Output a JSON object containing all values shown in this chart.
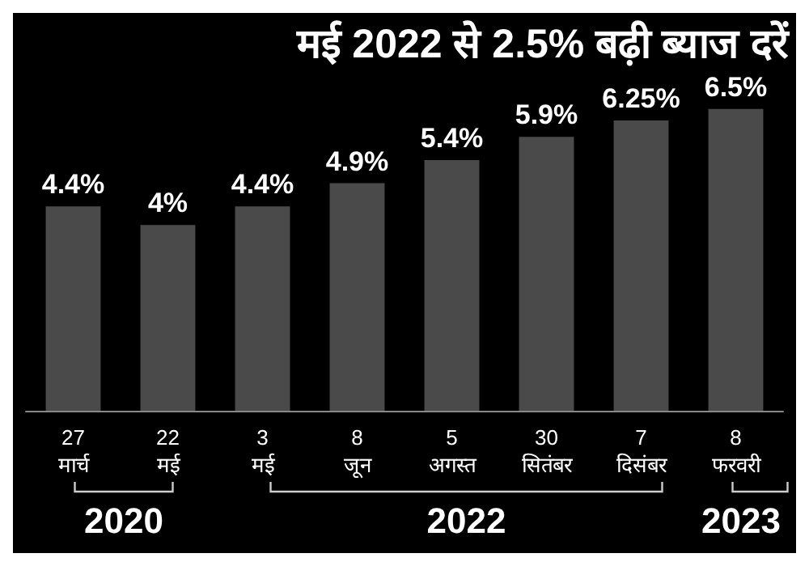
{
  "chart_data": {
    "type": "bar",
    "title": "मई 2022 से 2.5% बढ़ी ब्याज दरें",
    "categories": [
      "27 मार्च",
      "22 मई",
      "3 मई",
      "8 जून",
      "5 अगस्त",
      "30 सितंबर",
      "7 दिसंबर",
      "8 फरवरी"
    ],
    "values": [
      4.4,
      4,
      4.4,
      4.9,
      5.4,
      5.9,
      6.25,
      6.5
    ],
    "value_labels": [
      "4.4%",
      "4%",
      "4.4%",
      "4.9%",
      "5.4%",
      "5.9%",
      "6.25%",
      "6.5%"
    ],
    "color": "#4a4a4a",
    "annotations": [
      "2020",
      "2022",
      "2023"
    ]
  }
}
